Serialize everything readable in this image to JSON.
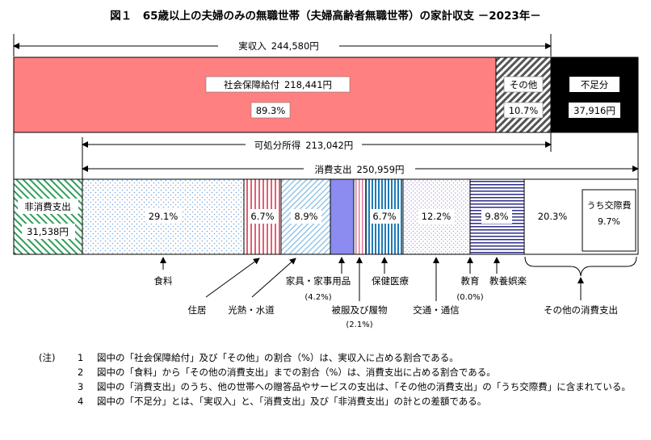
{
  "chart_data": {
    "type": "bar",
    "title": "図１　65歳以上の夫婦のみの無職世帯（夫婦高齢者無職世帯）の家計収支 －2023年－",
    "income": {
      "label": "実収入",
      "value_text": "244,580円",
      "value": 244580,
      "segments": [
        {
          "label": "社会保障給付",
          "value_text": "218,441円",
          "value": 218441,
          "share": "89.3%"
        },
        {
          "label": "その他",
          "share": "10.7%",
          "value": 26139
        }
      ],
      "shortfall": {
        "label": "不足分",
        "value_text": "37,916円",
        "value": 37916
      }
    },
    "disposable": {
      "label": "可処分所得",
      "value_text": "213,042円",
      "value": 213042
    },
    "expenditure": {
      "label": "消費支出",
      "value_text": "250,959円",
      "value": 250959,
      "non_consumption": {
        "label": "非消費支出",
        "value_text": "31,538円",
        "value": 31538
      },
      "segments": [
        {
          "label": "食料",
          "share": "29.1%",
          "value": 29.1
        },
        {
          "label": "住居",
          "share": "6.7%",
          "value": 6.7
        },
        {
          "label": "光熱・水道",
          "share": "8.9%",
          "value": 8.9
        },
        {
          "label": "家具・家事用品",
          "share": "(4.2%)",
          "value": 4.2
        },
        {
          "label": "被服及び履物",
          "share": "(2.1%)",
          "value": 2.1
        },
        {
          "label": "保健医療",
          "share": "6.7%",
          "value": 6.7
        },
        {
          "label": "交通・通信",
          "share": "12.2%",
          "value": 12.2
        },
        {
          "label": "教育",
          "share": "(0.0%)",
          "value": 0.0
        },
        {
          "label": "教養娯楽",
          "share": "9.8%",
          "value": 9.8
        },
        {
          "label": "その他の消費支出",
          "share": "20.3%",
          "value": 20.3
        }
      ],
      "sub_item": {
        "label": "うち交際費",
        "share": "9.7%",
        "value": 9.7
      }
    }
  },
  "notes": {
    "head": "(注)",
    "items": [
      {
        "num": "1",
        "text": "図中の「社会保障給付」及び「その他」の割合（%）は、実収入に占める割合である。"
      },
      {
        "num": "2",
        "text": "図中の「食料」から「その他の消費支出」までの割合（%）は、消費支出に占める割合である。"
      },
      {
        "num": "3",
        "text": "図中の「消費支出」のうち、他の世帯への贈答品やサービスの支出は、「その他の消費支出」の「うち交際費」に含まれている。"
      },
      {
        "num": "4",
        "text": "図中の「不足分」とは、「実収入」と、「消費支出」及び「非消費支出」の計との差額である。"
      }
    ]
  }
}
